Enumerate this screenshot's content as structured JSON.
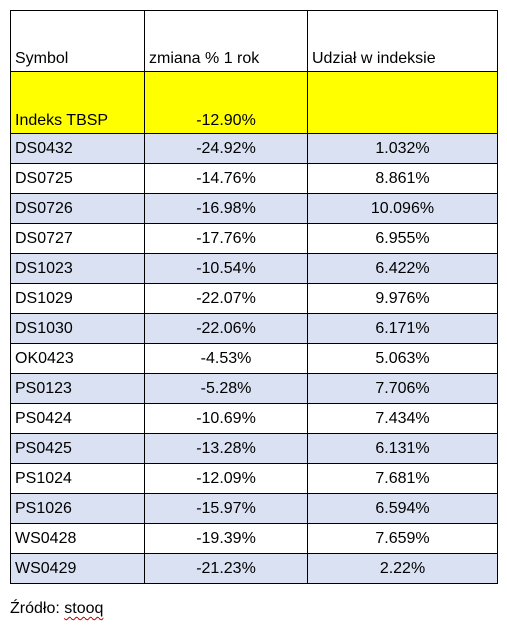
{
  "colors": {
    "highlight": "#ffff00",
    "row_alt": "#d9e1f2",
    "row_plain": "#ffffff",
    "grid": "#000000",
    "spell_underline": "#c00000"
  },
  "table": {
    "headers": [
      "Symbol",
      "zmiana % 1 rok",
      "Udział w indeksie"
    ],
    "index_row": {
      "symbol": "Indeks TBSP",
      "change": "-12.90%",
      "share": ""
    },
    "rows": [
      {
        "symbol": "DS0432",
        "change": "-24.92%",
        "share": "1.032%"
      },
      {
        "symbol": "DS0725",
        "change": "-14.76%",
        "share": "8.861%"
      },
      {
        "symbol": "DS0726",
        "change": "-16.98%",
        "share": "10.096%"
      },
      {
        "symbol": "DS0727",
        "change": "-17.76%",
        "share": "6.955%"
      },
      {
        "symbol": "DS1023",
        "change": "-10.54%",
        "share": "6.422%"
      },
      {
        "symbol": "DS1029",
        "change": "-22.07%",
        "share": "9.976%"
      },
      {
        "symbol": "DS1030",
        "change": "-22.06%",
        "share": "6.171%"
      },
      {
        "symbol": "OK0423",
        "change": "-4.53%",
        "share": "5.063%"
      },
      {
        "symbol": "PS0123",
        "change": "-5.28%",
        "share": "7.706%"
      },
      {
        "symbol": "PS0424",
        "change": "-10.69%",
        "share": "7.434%"
      },
      {
        "symbol": "PS0425",
        "change": "-13.28%",
        "share": "6.131%"
      },
      {
        "symbol": "PS1024",
        "change": "-12.09%",
        "share": "7.681%"
      },
      {
        "symbol": "PS1026",
        "change": "-15.97%",
        "share": "6.594%"
      },
      {
        "symbol": "WS0428",
        "change": "-19.39%",
        "share": "7.659%"
      },
      {
        "symbol": "WS0429",
        "change": "-21.23%",
        "share": "2.22%"
      }
    ]
  },
  "source": {
    "label": "Źródło: ",
    "name": "stooq"
  }
}
